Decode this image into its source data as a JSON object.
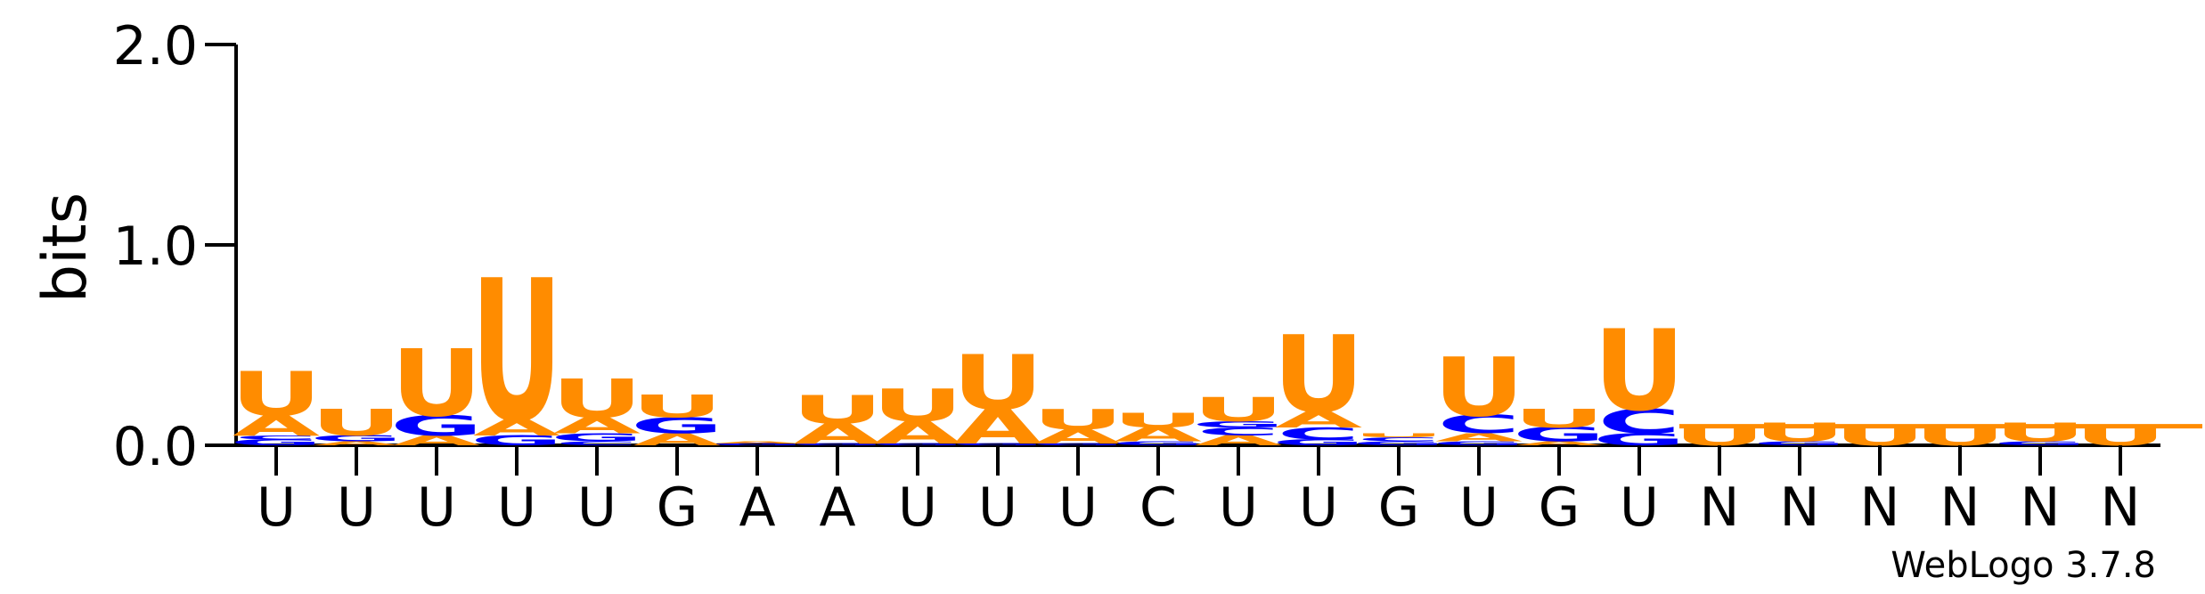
{
  "chart_data": {
    "type": "sequence-logo",
    "ylabel": "bits",
    "ylim": [
      0,
      2.0
    ],
    "yticks": [
      {
        "value": 0,
        "label": "0.0"
      },
      {
        "value": 1,
        "label": "1.0"
      },
      {
        "value": 2,
        "label": "2.0"
      }
    ],
    "x_tick_labels": [
      "U",
      "U",
      "U",
      "U",
      "U",
      "G",
      "A",
      "A",
      "U",
      "U",
      "U",
      "C",
      "U",
      "U",
      "G",
      "U",
      "G",
      "U",
      "N",
      "N",
      "N",
      "N",
      "N",
      "N"
    ],
    "watermark": "WebLogo 3.7.8",
    "colors": {
      "U": "#ff8c00",
      "A": "#ff8c00",
      "G": "#0000ff",
      "C": "#0000ff",
      "N": "#ff8c00"
    },
    "columns": [
      {
        "stack": [
          {
            "letter": "G",
            "height": 0.03
          },
          {
            "letter": "C",
            "height": 0.02
          },
          {
            "letter": "A",
            "height": 0.1
          },
          {
            "letter": "U",
            "height": 0.22
          }
        ]
      },
      {
        "stack": [
          {
            "letter": "A",
            "height": 0.02
          },
          {
            "letter": "G",
            "height": 0.03
          },
          {
            "letter": "U",
            "height": 0.13
          }
        ]
      },
      {
        "stack": [
          {
            "letter": "A",
            "height": 0.05
          },
          {
            "letter": "G",
            "height": 0.1
          },
          {
            "letter": "U",
            "height": 0.33
          }
        ]
      },
      {
        "stack": [
          {
            "letter": "G",
            "height": 0.05
          },
          {
            "letter": "A",
            "height": 0.08
          },
          {
            "letter": "U",
            "height": 0.7
          }
        ]
      },
      {
        "stack": [
          {
            "letter": "C",
            "height": 0.02
          },
          {
            "letter": "G",
            "height": 0.04
          },
          {
            "letter": "A",
            "height": 0.08
          },
          {
            "letter": "U",
            "height": 0.19
          }
        ]
      },
      {
        "stack": [
          {
            "letter": "A",
            "height": 0.06
          },
          {
            "letter": "G",
            "height": 0.08
          },
          {
            "letter": "U",
            "height": 0.11
          }
        ]
      },
      {
        "stack": [
          {
            "letter": "G",
            "height": 0.01
          },
          {
            "letter": "A",
            "height": 0.01
          }
        ]
      },
      {
        "stack": [
          {
            "letter": "G",
            "height": 0.01
          },
          {
            "letter": "A",
            "height": 0.1
          },
          {
            "letter": "U",
            "height": 0.14
          }
        ]
      },
      {
        "stack": [
          {
            "letter": "G",
            "height": 0.01
          },
          {
            "letter": "A",
            "height": 0.11
          },
          {
            "letter": "U",
            "height": 0.16
          }
        ]
      },
      {
        "stack": [
          {
            "letter": "G",
            "height": 0.01
          },
          {
            "letter": "A",
            "height": 0.17
          },
          {
            "letter": "U",
            "height": 0.27
          }
        ]
      },
      {
        "stack": [
          {
            "letter": "G",
            "height": 0.01
          },
          {
            "letter": "A",
            "height": 0.07
          },
          {
            "letter": "U",
            "height": 0.1
          }
        ]
      },
      {
        "stack": [
          {
            "letter": "G",
            "height": 0.02
          },
          {
            "letter": "A",
            "height": 0.07
          },
          {
            "letter": "U",
            "height": 0.07
          }
        ]
      },
      {
        "stack": [
          {
            "letter": "A",
            "height": 0.05
          },
          {
            "letter": "C",
            "height": 0.04
          },
          {
            "letter": "G",
            "height": 0.03
          },
          {
            "letter": "U",
            "height": 0.12
          }
        ]
      },
      {
        "stack": [
          {
            "letter": "G",
            "height": 0.03
          },
          {
            "letter": "C",
            "height": 0.06
          },
          {
            "letter": "A",
            "height": 0.08
          },
          {
            "letter": "U",
            "height": 0.38
          }
        ]
      },
      {
        "stack": [
          {
            "letter": "G",
            "height": 0.02
          },
          {
            "letter": "C",
            "height": 0.02
          },
          {
            "letter": "U",
            "height": 0.02
          }
        ]
      },
      {
        "stack": [
          {
            "letter": "G",
            "height": 0.02
          },
          {
            "letter": "A",
            "height": 0.04
          },
          {
            "letter": "C",
            "height": 0.09
          },
          {
            "letter": "U",
            "height": 0.29
          }
        ]
      },
      {
        "stack": [
          {
            "letter": "A",
            "height": 0.02
          },
          {
            "letter": "G",
            "height": 0.07
          },
          {
            "letter": "U",
            "height": 0.09
          }
        ]
      },
      {
        "stack": [
          {
            "letter": "G",
            "height": 0.06
          },
          {
            "letter": "C",
            "height": 0.12
          },
          {
            "letter": "U",
            "height": 0.4
          }
        ]
      },
      {
        "stack": [
          {
            "letter": "U",
            "height": 0.1
          }
        ]
      },
      {
        "stack": [
          {
            "letter": "G",
            "height": 0.02
          },
          {
            "letter": "U",
            "height": 0.09
          }
        ]
      },
      {
        "stack": [
          {
            "letter": "U",
            "height": 0.1
          }
        ]
      },
      {
        "stack": [
          {
            "letter": "U",
            "height": 0.1
          }
        ]
      },
      {
        "stack": [
          {
            "letter": "G",
            "height": 0.02
          },
          {
            "letter": "U",
            "height": 0.09
          }
        ]
      },
      {
        "stack": [
          {
            "letter": "U",
            "height": 0.1
          }
        ]
      }
    ]
  }
}
